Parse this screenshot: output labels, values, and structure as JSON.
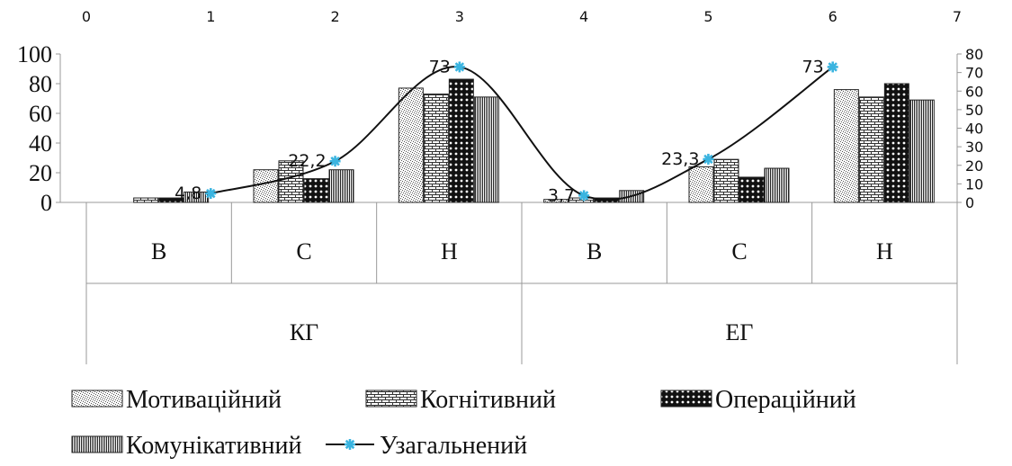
{
  "chart_data": {
    "type": "bar",
    "categories": [
      {
        "label": "В",
        "group": "КГ"
      },
      {
        "label": "С",
        "group": "КГ"
      },
      {
        "label": "Н",
        "group": "КГ"
      },
      {
        "label": "В",
        "group": "ЕГ"
      },
      {
        "label": "С",
        "group": "ЕГ"
      },
      {
        "label": "Н",
        "group": "ЕГ"
      }
    ],
    "groups": [
      "КГ",
      "ЕГ"
    ],
    "left_axis": {
      "ylim": [
        0,
        100
      ],
      "ticks": [
        "0",
        "20",
        "40",
        "60",
        "80",
        "100"
      ]
    },
    "right_axis": {
      "ylim": [
        0,
        80
      ],
      "ticks": [
        "0",
        "10",
        "20",
        "30",
        "40",
        "50",
        "60",
        "70",
        "80"
      ]
    },
    "top_axis": {
      "xlim": [
        0,
        7
      ],
      "ticks": [
        "0",
        "1",
        "2",
        "3",
        "4",
        "5",
        "6",
        "7"
      ]
    },
    "series": [
      {
        "name": "Мотиваційний",
        "values": [
          0,
          22,
          77,
          2,
          24,
          76
        ]
      },
      {
        "name": "Когнітивний",
        "values": [
          3,
          28,
          73,
          3,
          29,
          71
        ]
      },
      {
        "name": "Операційний",
        "values": [
          3,
          16,
          83,
          3,
          17,
          80
        ]
      },
      {
        "name": "Комунікативний",
        "values": [
          7,
          22,
          71,
          8,
          23,
          69
        ]
      }
    ],
    "line_series": {
      "name": "Узагальнений",
      "axis": "secondary",
      "x": [
        1,
        2,
        3,
        4,
        5,
        6
      ],
      "values": [
        4.8,
        22.2,
        73,
        3.7,
        23.3,
        73
      ],
      "labels": [
        "4,8",
        "22,2",
        "73",
        "3,7",
        "23,3",
        "73"
      ]
    },
    "grid": false,
    "legend": "bottom"
  }
}
